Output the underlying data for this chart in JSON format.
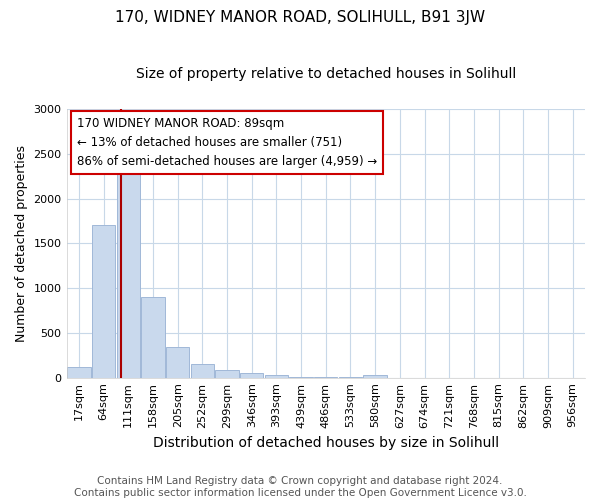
{
  "title": "170, WIDNEY MANOR ROAD, SOLIHULL, B91 3JW",
  "subtitle": "Size of property relative to detached houses in Solihull",
  "xlabel": "Distribution of detached houses by size in Solihull",
  "ylabel": "Number of detached properties",
  "bin_labels": [
    "17sqm",
    "64sqm",
    "111sqm",
    "158sqm",
    "205sqm",
    "252sqm",
    "299sqm",
    "346sqm",
    "393sqm",
    "439sqm",
    "486sqm",
    "533sqm",
    "580sqm",
    "627sqm",
    "674sqm",
    "721sqm",
    "768sqm",
    "815sqm",
    "862sqm",
    "909sqm",
    "956sqm"
  ],
  "bar_values": [
    120,
    1700,
    2370,
    900,
    340,
    155,
    90,
    55,
    30,
    10,
    5,
    5,
    30,
    0,
    0,
    0,
    0,
    0,
    0,
    0,
    0
  ],
  "bar_color": "#c9d9ed",
  "bar_edge_color": "#a0b8d8",
  "vline_position": 1.72,
  "vline_color": "#aa0000",
  "annotation_box_text": "170 WIDNEY MANOR ROAD: 89sqm\n← 13% of detached houses are smaller (751)\n86% of semi-detached houses are larger (4,959) →",
  "ylim": [
    0,
    3000
  ],
  "yticks": [
    0,
    500,
    1000,
    1500,
    2000,
    2500,
    3000
  ],
  "footnote": "Contains HM Land Registry data © Crown copyright and database right 2024.\nContains public sector information licensed under the Open Government Licence v3.0.",
  "bg_color": "#ffffff",
  "grid_color": "#c8d8e8",
  "title_fontsize": 11,
  "subtitle_fontsize": 10,
  "xlabel_fontsize": 10,
  "ylabel_fontsize": 9,
  "tick_fontsize": 8,
  "footnote_fontsize": 7.5
}
